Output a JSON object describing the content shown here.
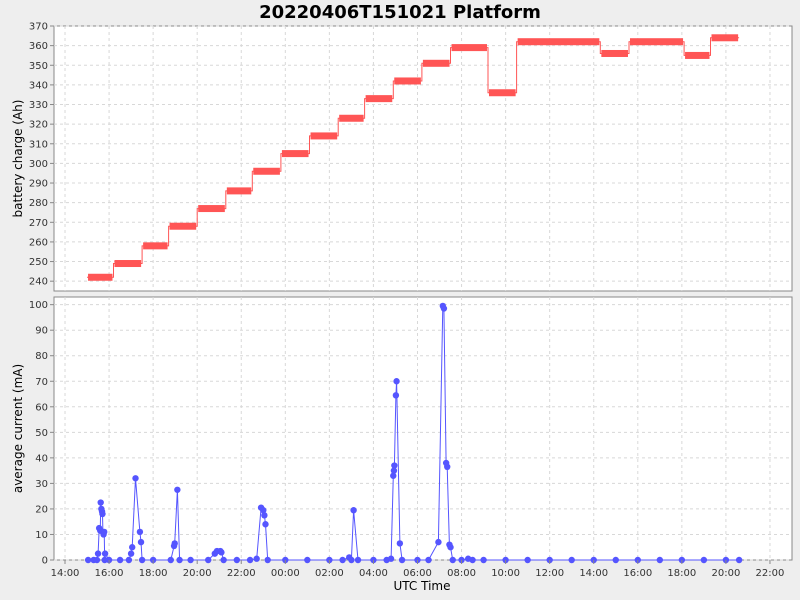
{
  "title": "20220406T151021 Platform",
  "xlabel": "UTC Time",
  "x_tick_labels": [
    "14:00",
    "16:00",
    "18:00",
    "20:00",
    "22:00",
    "00:00",
    "02:00",
    "04:00",
    "06:00",
    "08:00",
    "10:00",
    "12:00",
    "14:00",
    "16:00",
    "18:00",
    "20:00",
    "22:00"
  ],
  "colors": {
    "charge": "#ff5555",
    "current": "#5555ff",
    "background": "#eeeeee",
    "plot": "#ffffff"
  },
  "chart_data": [
    {
      "type": "line",
      "ylabel": "battery charge (Ah)",
      "ylim": [
        235,
        370
      ],
      "yticks": [
        240,
        250,
        260,
        270,
        280,
        290,
        300,
        310,
        320,
        330,
        340,
        350,
        360,
        370
      ],
      "xlim_hours": [
        13.5,
        47
      ],
      "grid": true,
      "series": [
        {
          "segments": [
            {
              "start": 15.0,
              "end": 16.2,
              "value": 242
            },
            {
              "start": 16.2,
              "end": 17.5,
              "value": 249
            },
            {
              "start": 17.5,
              "end": 18.7,
              "value": 258
            },
            {
              "start": 18.7,
              "end": 20.0,
              "value": 268
            },
            {
              "start": 20.0,
              "end": 21.3,
              "value": 277
            },
            {
              "start": 21.3,
              "end": 22.5,
              "value": 286
            },
            {
              "start": 22.5,
              "end": 23.8,
              "value": 296
            },
            {
              "start": 23.8,
              "end": 25.1,
              "value": 305
            },
            {
              "start": 25.1,
              "end": 26.4,
              "value": 314
            },
            {
              "start": 26.4,
              "end": 27.6,
              "value": 323
            },
            {
              "start": 27.6,
              "end": 28.9,
              "value": 333
            },
            {
              "start": 28.9,
              "end": 30.2,
              "value": 342
            },
            {
              "start": 30.2,
              "end": 31.5,
              "value": 351
            },
            {
              "start": 31.5,
              "end": 33.2,
              "value": 359
            },
            {
              "start": 33.2,
              "end": 34.5,
              "value": 336
            },
            {
              "start": 34.5,
              "end": 38.3,
              "value": 362
            },
            {
              "start": 38.3,
              "end": 39.6,
              "value": 356
            },
            {
              "start": 39.6,
              "end": 42.1,
              "value": 362
            },
            {
              "start": 42.1,
              "end": 43.3,
              "value": 355
            },
            {
              "start": 43.3,
              "end": 44.6,
              "value": 364
            }
          ]
        }
      ]
    },
    {
      "type": "line",
      "ylabel": "average current (mA)",
      "ylim": [
        0,
        103
      ],
      "yticks": [
        0,
        10,
        20,
        30,
        40,
        50,
        60,
        70,
        80,
        90,
        100
      ],
      "xlim_hours": [
        13.5,
        47
      ],
      "grid": true,
      "series": [
        {
          "points": [
            [
              15.05,
              0
            ],
            [
              15.3,
              0
            ],
            [
              15.45,
              0
            ],
            [
              15.5,
              2.5
            ],
            [
              15.55,
              12.5
            ],
            [
              15.6,
              11.5
            ],
            [
              15.62,
              22.5
            ],
            [
              15.65,
              20
            ],
            [
              15.68,
              19
            ],
            [
              15.7,
              18
            ],
            [
              15.72,
              11
            ],
            [
              15.75,
              10
            ],
            [
              15.78,
              11
            ],
            [
              15.8,
              0
            ],
            [
              15.82,
              2.5
            ],
            [
              16.0,
              0
            ],
            [
              16.5,
              0
            ],
            [
              16.9,
              0
            ],
            [
              17.0,
              2.5
            ],
            [
              17.05,
              5
            ],
            [
              17.2,
              32
            ],
            [
              17.4,
              11
            ],
            [
              17.45,
              7
            ],
            [
              17.5,
              0
            ],
            [
              18.0,
              0
            ],
            [
              18.8,
              0
            ],
            [
              18.95,
              5.5
            ],
            [
              18.98,
              6.5
            ],
            [
              19.1,
              27.5
            ],
            [
              19.2,
              0
            ],
            [
              19.7,
              0
            ],
            [
              20.5,
              0
            ],
            [
              20.8,
              2.5
            ],
            [
              20.9,
              3.5
            ],
            [
              21.05,
              3.5
            ],
            [
              21.1,
              3
            ],
            [
              21.2,
              0
            ],
            [
              21.8,
              0
            ],
            [
              22.4,
              0
            ],
            [
              22.7,
              0.5
            ],
            [
              22.9,
              20.5
            ],
            [
              23.0,
              19.5
            ],
            [
              23.05,
              17.5
            ],
            [
              23.1,
              14
            ],
            [
              23.2,
              0
            ],
            [
              24.0,
              0
            ],
            [
              25.0,
              0
            ],
            [
              26.0,
              0
            ],
            [
              26.6,
              0
            ],
            [
              26.9,
              1
            ],
            [
              27.0,
              0
            ],
            [
              27.1,
              19.5
            ],
            [
              27.3,
              0
            ],
            [
              28.0,
              0
            ],
            [
              28.6,
              0
            ],
            [
              28.8,
              0.5
            ],
            [
              28.9,
              33
            ],
            [
              28.93,
              35
            ],
            [
              28.95,
              37
            ],
            [
              29.02,
              64.5
            ],
            [
              29.05,
              70
            ],
            [
              29.2,
              6.5
            ],
            [
              29.3,
              0
            ],
            [
              30.0,
              0
            ],
            [
              30.5,
              0
            ],
            [
              30.95,
              7
            ],
            [
              31.15,
              99.5
            ],
            [
              31.2,
              98.5
            ],
            [
              31.3,
              38
            ],
            [
              31.35,
              36.5
            ],
            [
              31.45,
              6
            ],
            [
              31.5,
              5
            ],
            [
              31.6,
              0
            ],
            [
              32.0,
              0
            ],
            [
              32.3,
              0.5
            ],
            [
              32.5,
              0
            ],
            [
              33.0,
              0
            ],
            [
              34.0,
              0
            ],
            [
              35.0,
              0
            ],
            [
              36.0,
              0
            ],
            [
              37.0,
              0
            ],
            [
              38.0,
              0
            ],
            [
              39.0,
              0
            ],
            [
              40.0,
              0
            ],
            [
              41.0,
              0
            ],
            [
              42.0,
              0
            ],
            [
              43.0,
              0
            ],
            [
              44.0,
              0
            ],
            [
              44.6,
              0
            ]
          ]
        }
      ]
    }
  ]
}
